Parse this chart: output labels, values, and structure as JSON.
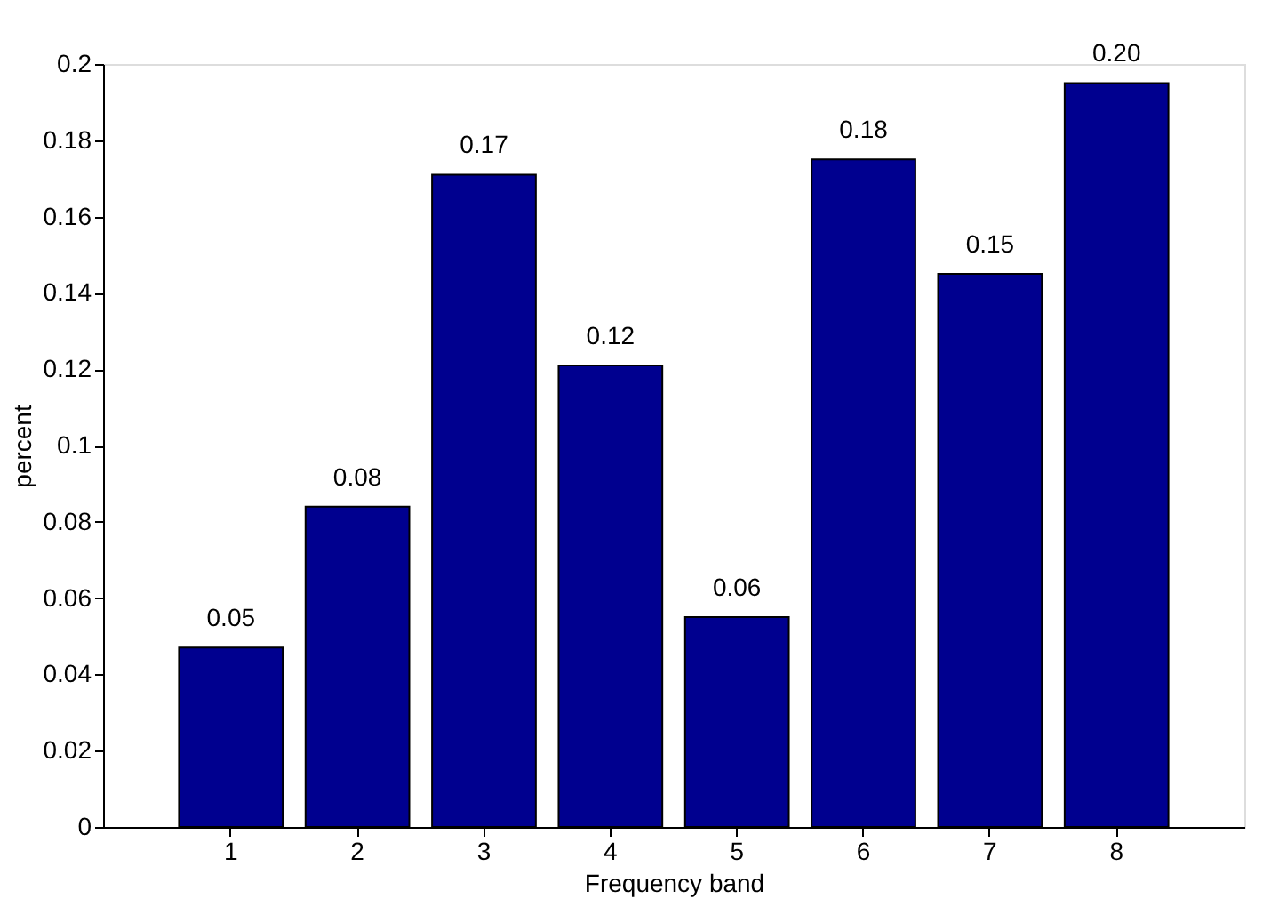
{
  "chart_data": {
    "type": "bar",
    "xlabel": "Frequency band",
    "ylabel": "percent",
    "categories": [
      "1",
      "2",
      "3",
      "4",
      "5",
      "6",
      "7",
      "8"
    ],
    "values": [
      0.047,
      0.084,
      0.171,
      0.121,
      0.055,
      0.175,
      0.145,
      0.195
    ],
    "value_labels": [
      "0.05",
      "0.08",
      "0.17",
      "0.12",
      "0.06",
      "0.18",
      "0.15",
      "0.20"
    ],
    "color": "#00008f",
    "ylim": [
      0,
      0.2
    ],
    "yticks": [
      0,
      0.02,
      0.04,
      0.06,
      0.08,
      0.1,
      0.12,
      0.14,
      0.16,
      0.18,
      0.2
    ],
    "grid": false
  }
}
